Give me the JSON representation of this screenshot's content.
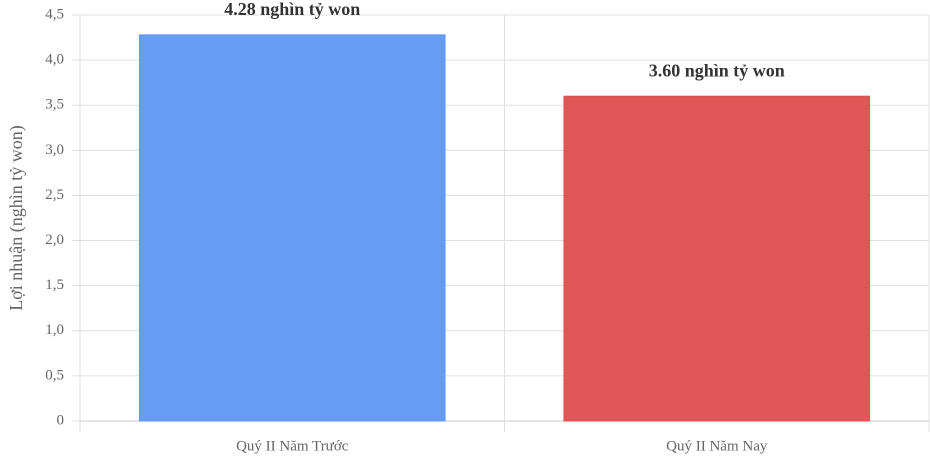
{
  "chart_data": {
    "type": "bar",
    "y_label": "Lợi nhuận (nghìn tỷ won)",
    "categories": [
      "Quý II Năm Trước",
      "Quý II Năm Nay"
    ],
    "values": [
      4.28,
      3.6
    ],
    "value_labels": [
      "4.28 nghìn tỷ won",
      "3.60 nghìn tỷ won"
    ],
    "colors": [
      "#6299f5",
      "#e05151"
    ],
    "ylim": [
      0,
      4.5
    ],
    "yticks": [
      0,
      {
        "value": 0.5,
        "label": "0,5"
      },
      {
        "value": 1.0,
        "label": "1,0"
      },
      {
        "value": 1.5,
        "label": "1,5"
      },
      {
        "value": 2.0,
        "label": "2,0"
      },
      {
        "value": 2.5,
        "label": "2,5"
      },
      {
        "value": 3.0,
        "label": "3,0"
      },
      {
        "value": 3.5,
        "label": "3,5"
      },
      {
        "value": 4.0,
        "label": "4,0"
      },
      {
        "value": 4.5,
        "label": "4,5"
      }
    ],
    "grid": true
  }
}
